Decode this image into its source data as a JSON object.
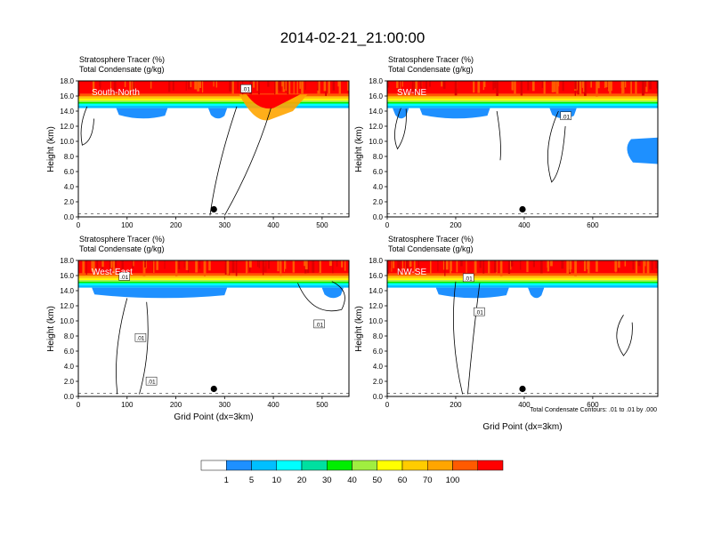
{
  "title": "2014-02-21_21:00:00",
  "footnote": "Total Condensate Contours: .01 to .01 by .000",
  "colorbar": {
    "labels": [
      "1",
      "5",
      "10",
      "20",
      "30",
      "40",
      "50",
      "60",
      "70",
      "100"
    ],
    "colors": [
      "#ffffff",
      "#1e90ff",
      "#00bfff",
      "#00ffff",
      "#00e0a0",
      "#00ee00",
      "#a0ee40",
      "#ffff00",
      "#ffcc00",
      "#ffa500",
      "#ff5a00",
      "#ff0000"
    ]
  },
  "chart_data": [
    {
      "type": "heatmap",
      "panel_label": "South-North",
      "subtitle_1": "Stratosphere Tracer   (%)",
      "subtitle_2": "Total Condensate   (g/kg)",
      "ylabel": "Height (km)",
      "xlabel": "",
      "xlim": [
        0,
        555
      ],
      "ylim": [
        0,
        18
      ],
      "xticks": [
        "0",
        "100",
        "200",
        "300",
        "400",
        "500"
      ],
      "yticks": [
        "0.0",
        "2.0",
        "4.0",
        "6.0",
        "8.0",
        "10.0",
        "12.0",
        "14.0",
        "16.0",
        "18.0"
      ],
      "marker_x": 278,
      "contour_labels": [
        ".01"
      ]
    },
    {
      "type": "heatmap",
      "panel_label": "SW-NE",
      "subtitle_1": "Stratosphere Tracer   (%)",
      "subtitle_2": "Total Condensate   (g/kg)",
      "ylabel": "Height (km)",
      "xlabel": "",
      "xlim": [
        0,
        790
      ],
      "ylim": [
        0,
        18
      ],
      "xticks": [
        "0",
        "200",
        "400",
        "600"
      ],
      "yticks": [
        "0.0",
        "2.0",
        "4.0",
        "6.0",
        "8.0",
        "10.0",
        "12.0",
        "14.0",
        "16.0",
        "18.0"
      ],
      "marker_x": 395,
      "contour_labels": [
        ".01"
      ]
    },
    {
      "type": "heatmap",
      "panel_label": "West-East",
      "subtitle_1": "Stratosphere Tracer   (%)",
      "subtitle_2": "Total Condensate   (g/kg)",
      "ylabel": "Height (km)",
      "xlabel": "Grid Point (dx=3km)",
      "xlim": [
        0,
        555
      ],
      "ylim": [
        0,
        18
      ],
      "xticks": [
        "0",
        "100",
        "200",
        "300",
        "400",
        "500"
      ],
      "yticks": [
        "0.0",
        "2.0",
        "4.0",
        "6.0",
        "8.0",
        "10.0",
        "12.0",
        "14.0",
        "16.0",
        "18.0"
      ],
      "marker_x": 278,
      "contour_labels": [
        ".01",
        ".01",
        ".01",
        ".01"
      ]
    },
    {
      "type": "heatmap",
      "panel_label": "NW-SE",
      "subtitle_1": "Stratosphere Tracer   (%)",
      "subtitle_2": "Total Condensate   (g/kg)",
      "ylabel": "Height (km)",
      "xlabel": "Grid Point (dx=3km)",
      "xlim": [
        0,
        790
      ],
      "ylim": [
        0,
        18
      ],
      "xticks": [
        "0",
        "200",
        "400",
        "600"
      ],
      "yticks": [
        "0.0",
        "2.0",
        "4.0",
        "6.0",
        "8.0",
        "10.0",
        "12.0",
        "14.0",
        "16.0",
        "18.0"
      ],
      "marker_x": 395,
      "contour_labels": [
        ".01",
        ".01"
      ]
    }
  ]
}
